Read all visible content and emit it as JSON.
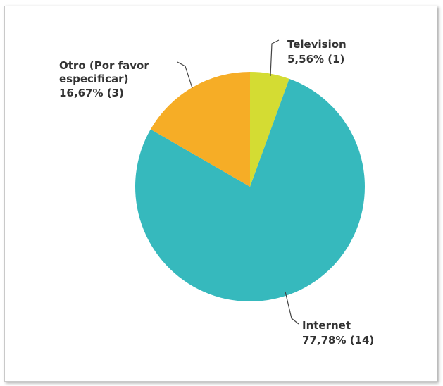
{
  "chart_data": {
    "type": "pie",
    "title": "",
    "slices": [
      {
        "name": "Television",
        "value": 1,
        "label_name": "Television",
        "label_value": "5,56% (1)",
        "color": "#d4dc33"
      },
      {
        "name": "Internet",
        "value": 14,
        "label_name": "Internet",
        "label_value": "77,78% (14)",
        "color": "#36b9bd"
      },
      {
        "name": "Otro (Por favor especificar)",
        "value": 3,
        "label_name_lines": [
          "Otro (Por favor",
          "especificar)"
        ],
        "label_value": "16,67% (3)",
        "color": "#f6ad26"
      }
    ]
  }
}
